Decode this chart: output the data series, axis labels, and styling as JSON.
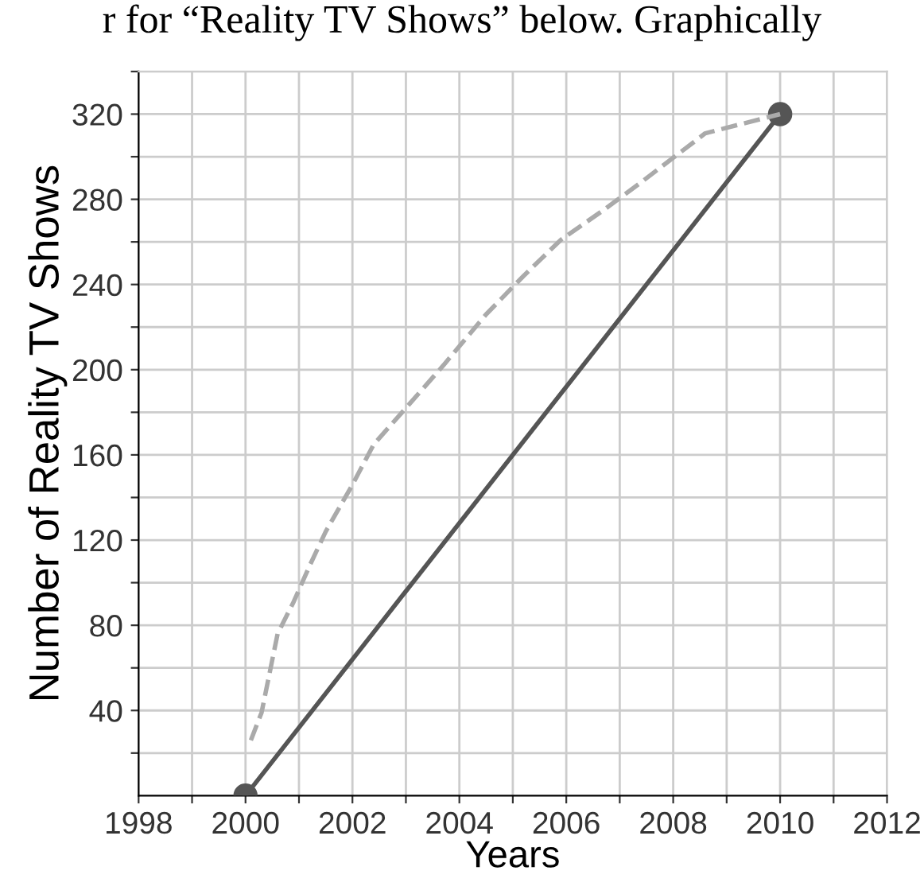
{
  "chart_data": {
    "type": "line",
    "xlabel": "Years",
    "ylabel": "Number of Reality TV Shows",
    "annotations": [
      "r for “Reality TV Shows” below. Graphically"
    ],
    "xlim": [
      1998,
      2012
    ],
    "ylim": [
      0,
      340
    ],
    "xticks": [
      1998,
      {
        "value": 1999,
        "label": null
      },
      2000,
      {
        "value": 2001,
        "label": null
      },
      2002,
      {
        "value": 2003,
        "label": null
      },
      2004,
      {
        "value": 2005,
        "label": null
      },
      2006,
      {
        "value": 2007,
        "label": null
      },
      2008,
      {
        "value": 2009,
        "label": null
      },
      2010,
      {
        "value": 2011,
        "label": null
      },
      2012
    ],
    "yticks": [
      {
        "value": 20,
        "label": null
      },
      40,
      {
        "value": 60,
        "label": null
      },
      80,
      {
        "value": 100,
        "label": null
      },
      120,
      {
        "value": 140,
        "label": null
      },
      160,
      {
        "value": 180,
        "label": null
      },
      200,
      {
        "value": 220,
        "label": null
      },
      240,
      {
        "value": 260,
        "label": null
      },
      280,
      {
        "value": 300,
        "label": null
      },
      320,
      {
        "value": 340,
        "label": null
      }
    ],
    "grid": true,
    "series": [
      {
        "color": "#555555",
        "marker": "circle",
        "line_style": "solid",
        "x": [
          2000,
          2010
        ],
        "values": [
          0,
          320
        ]
      },
      {
        "color": "#aaaaaa",
        "marker": "none",
        "line_style": "dashed",
        "x": [
          2000.1,
          2000.3,
          2000.6,
          2000.9,
          2001.2,
          2001.5,
          2002.0,
          2002.4,
          2003.0,
          2003.7,
          2004.5,
          2005.2,
          2005.9,
          2006.7,
          2007.4,
          2008.6,
          2010
        ],
        "values": [
          26,
          39,
          76,
          91,
          108,
          124,
          146,
          165,
          182,
          202,
          226,
          244,
          261,
          275,
          288,
          311,
          320
        ]
      }
    ]
  }
}
